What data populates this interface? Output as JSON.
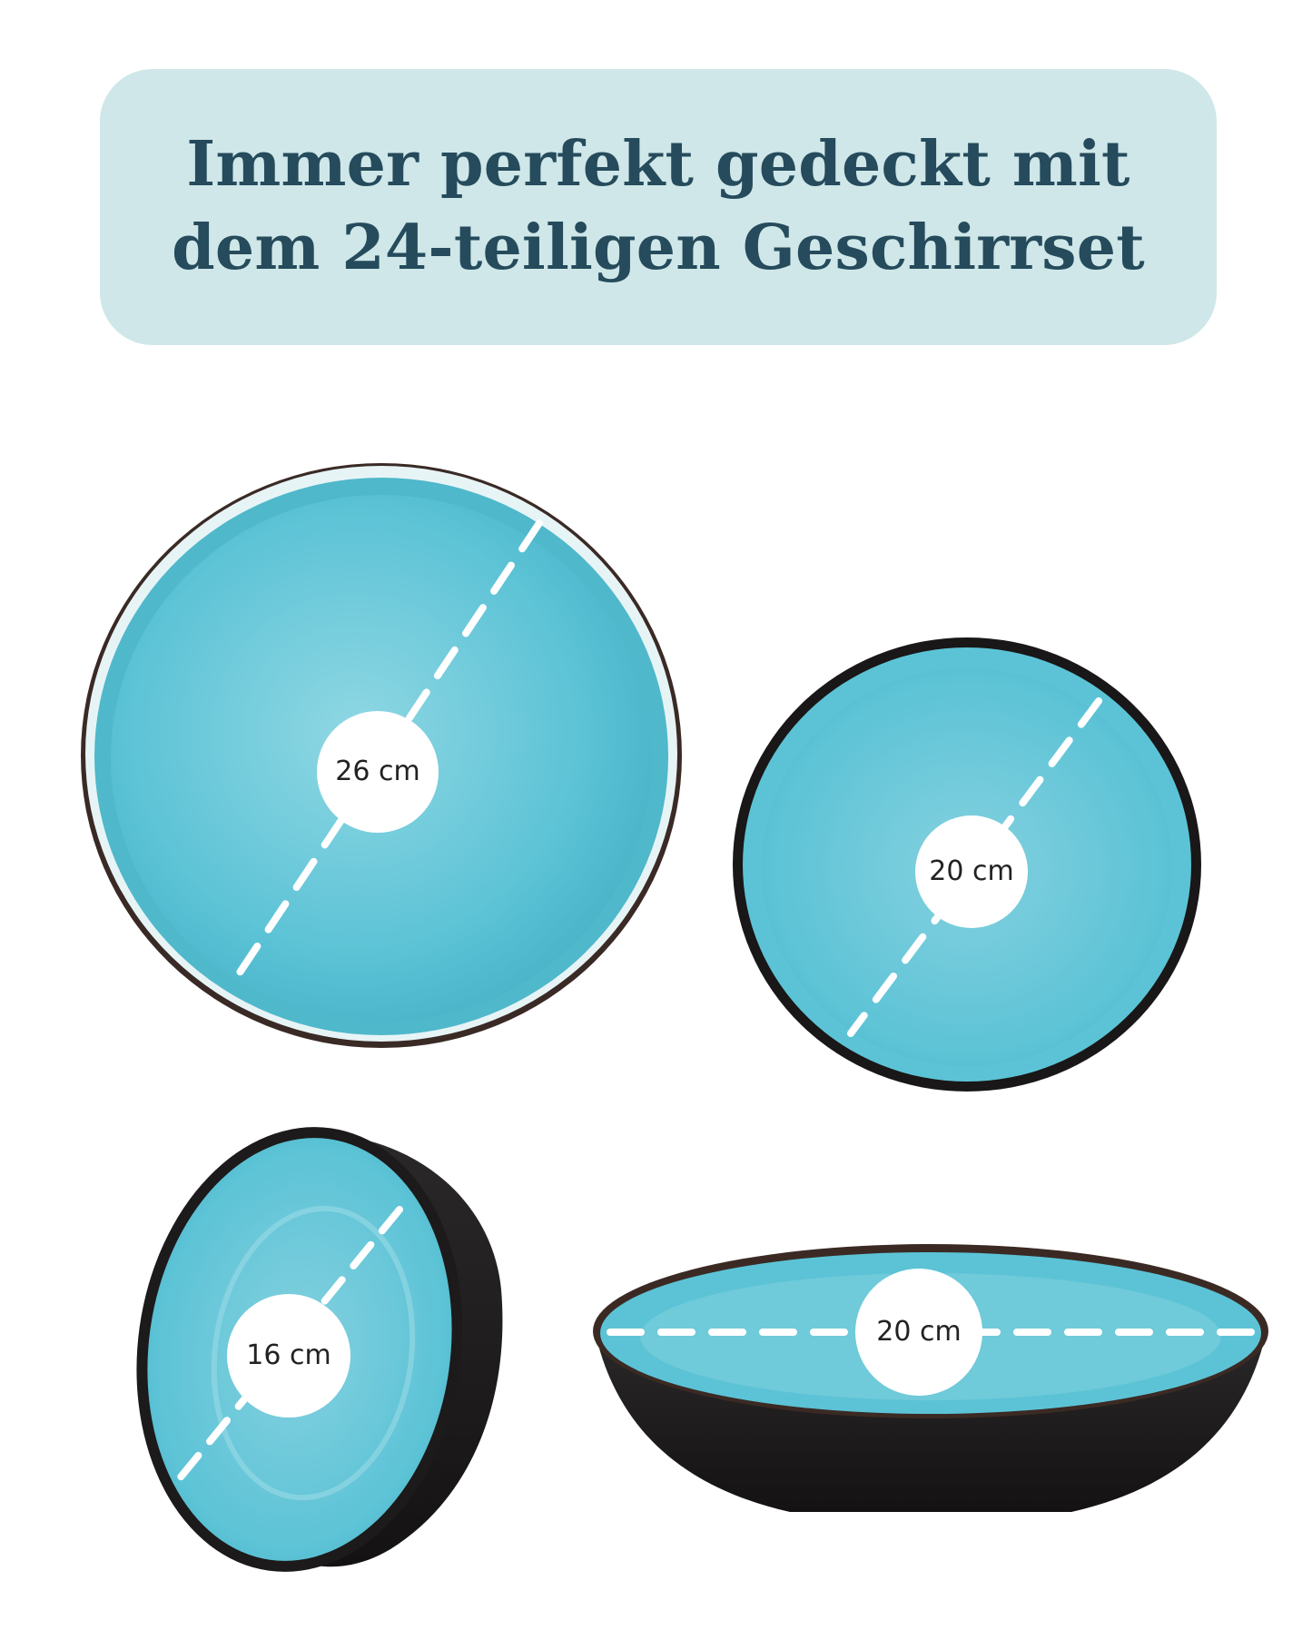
{
  "banner": {
    "title": "Immer perfekt gedeckt mit\ndem 24-teiligen Geschirrset"
  },
  "items": [
    {
      "size_label": "26 cm"
    },
    {
      "size_label": "20 cm"
    },
    {
      "size_label": "16 cm"
    },
    {
      "size_label": "20 cm"
    }
  ],
  "colors": {
    "banner_background": "#cfe7e8",
    "title_text": "#254b5c",
    "glaze": "#5cc3d6",
    "glaze_light": "#8fd7e3",
    "body_dark": "#1c1a1a",
    "rim_brown": "#5a3a2c",
    "measure_line": "#ffffff",
    "label_text": "#222222"
  }
}
